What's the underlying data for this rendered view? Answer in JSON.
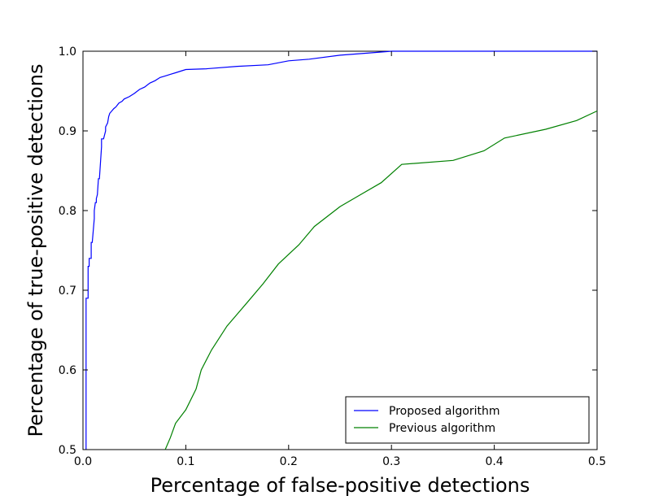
{
  "chart_data": {
    "type": "line",
    "title": "",
    "xlabel": "Percentage of false-positive detections",
    "ylabel": "Percentage of true-positive detections",
    "xlim": [
      0.0,
      0.5
    ],
    "ylim": [
      0.5,
      1.0
    ],
    "xticks": [
      "0.0",
      "0.1",
      "0.2",
      "0.3",
      "0.4",
      "0.5"
    ],
    "yticks": [
      "0.5",
      "0.6",
      "0.7",
      "0.8",
      "0.9",
      "1.0"
    ],
    "grid": false,
    "legend_position": "lower-right",
    "series": [
      {
        "name": "Proposed algorithm",
        "color": "#0000ff",
        "x": [
          0.003,
          0.003,
          0.004,
          0.005,
          0.005,
          0.006,
          0.006,
          0.008,
          0.008,
          0.009,
          0.011,
          0.011,
          0.012,
          0.013,
          0.013,
          0.014,
          0.015,
          0.016,
          0.017,
          0.018,
          0.018,
          0.02,
          0.022,
          0.022,
          0.024,
          0.025,
          0.026,
          0.028,
          0.03,
          0.032,
          0.035,
          0.038,
          0.04,
          0.045,
          0.05,
          0.055,
          0.06,
          0.065,
          0.07,
          0.075,
          0.08,
          0.085,
          0.09,
          0.095,
          0.1,
          0.12,
          0.15,
          0.18,
          0.2,
          0.22,
          0.25,
          0.28,
          0.3,
          0.4,
          0.5
        ],
        "y": [
          0.5,
          0.69,
          0.69,
          0.69,
          0.73,
          0.73,
          0.74,
          0.74,
          0.76,
          0.76,
          0.79,
          0.8,
          0.81,
          0.81,
          0.815,
          0.82,
          0.84,
          0.84,
          0.86,
          0.88,
          0.89,
          0.89,
          0.9,
          0.905,
          0.91,
          0.918,
          0.922,
          0.925,
          0.928,
          0.93,
          0.935,
          0.937,
          0.94,
          0.943,
          0.947,
          0.952,
          0.955,
          0.96,
          0.963,
          0.967,
          0.969,
          0.971,
          0.973,
          0.975,
          0.977,
          0.978,
          0.981,
          0.983,
          0.988,
          0.99,
          0.995,
          0.998,
          1.0,
          1.0,
          1.0
        ]
      },
      {
        "name": "Previous algorithm",
        "color": "#008000",
        "x": [
          0.08,
          0.085,
          0.09,
          0.1,
          0.11,
          0.115,
          0.125,
          0.14,
          0.16,
          0.175,
          0.19,
          0.21,
          0.225,
          0.25,
          0.27,
          0.29,
          0.31,
          0.36,
          0.39,
          0.41,
          0.45,
          0.48,
          0.5
        ],
        "y": [
          0.5,
          0.515,
          0.533,
          0.55,
          0.576,
          0.6,
          0.625,
          0.655,
          0.685,
          0.708,
          0.733,
          0.757,
          0.78,
          0.805,
          0.82,
          0.835,
          0.858,
          0.863,
          0.875,
          0.891,
          0.902,
          0.913,
          0.925
        ]
      }
    ]
  }
}
